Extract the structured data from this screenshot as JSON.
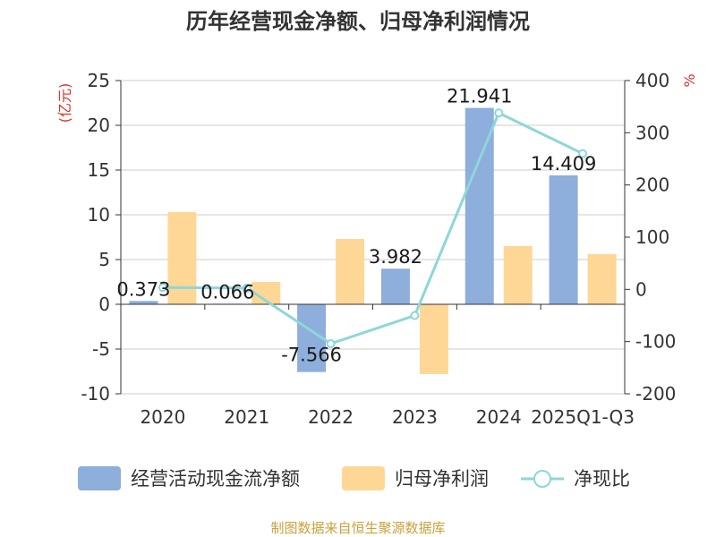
{
  "chart_data": {
    "type": "bar",
    "title": "历年经营现金净额、归母净利润情况",
    "categories": [
      "2020",
      "2021",
      "2022",
      "2023",
      "2024",
      "2025Q1-Q3"
    ],
    "series": [
      {
        "name": "经营活动现金流净额",
        "type": "bar",
        "axis": "left",
        "color": "#8eaedb",
        "values": [
          0.373,
          0.066,
          -7.566,
          3.982,
          21.941,
          14.409
        ],
        "labels": [
          "0.373",
          "0.066",
          "-7.566",
          "3.982",
          "21.941",
          "14.409"
        ]
      },
      {
        "name": "归母净利润",
        "type": "bar",
        "axis": "left",
        "color": "#fed797",
        "values": [
          10.3,
          2.5,
          7.3,
          -7.8,
          6.5,
          5.6
        ]
      },
      {
        "name": "净现比",
        "type": "line",
        "axis": "right",
        "color": "#8ed6d8",
        "values": [
          3.6,
          2.6,
          -104,
          -50,
          338,
          260
        ]
      }
    ],
    "left_axis": {
      "unit": "(亿元)",
      "min": -10,
      "max": 25,
      "step": 5,
      "ticks": [
        "-10",
        "-5",
        "0",
        "5",
        "10",
        "15",
        "20",
        "25"
      ]
    },
    "right_axis": {
      "unit": "%",
      "min": -200,
      "max": 400,
      "step": 100,
      "ticks": [
        "-200",
        "-100",
        "0",
        "100",
        "200",
        "300",
        "400"
      ]
    },
    "grid": true,
    "legend_position": "bottom"
  },
  "source": "制图数据来自恒生聚源数据库",
  "colors": {
    "unit_red": "#e0302a",
    "source_gold": "#c8a23c",
    "grid": "#cccccc",
    "axis": "#333333"
  }
}
